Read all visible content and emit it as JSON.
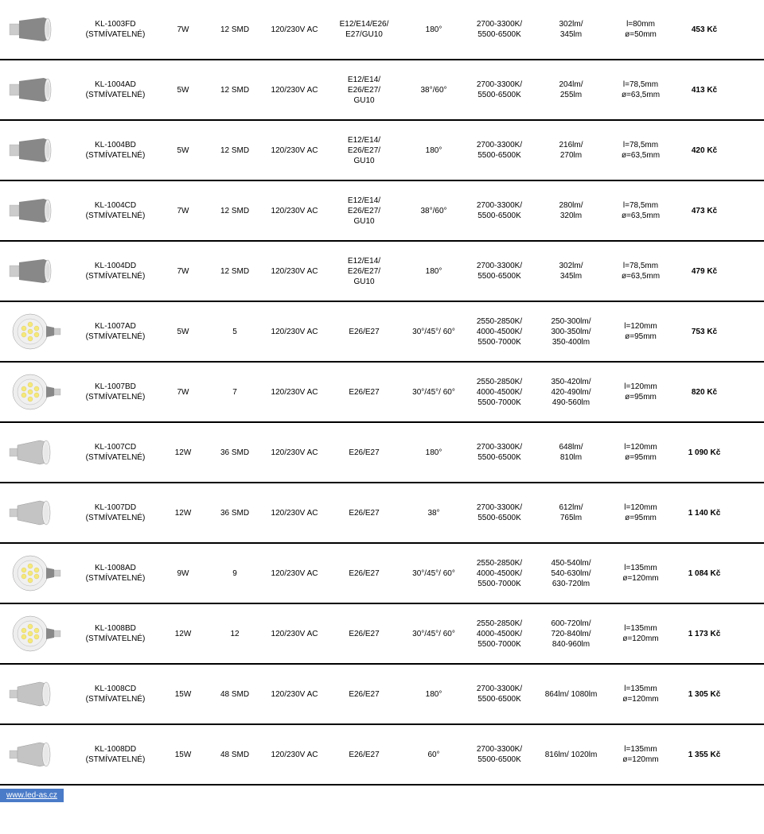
{
  "footer_link": "www.led-as.cz",
  "products": [
    {
      "img_type": "spot-side",
      "name": "KL-1003FD\n(STMÍVATELNÉ)",
      "power": "7W",
      "led": "12 SMD",
      "voltage": "120/230V AC",
      "socket": "E12/E14/E26/\nE27/GU10",
      "angle": "180°",
      "colortemp": "2700-3300K/\n5500-6500K",
      "lumen": "302lm/\n345lm",
      "dims": "l=80mm\nø=50mm",
      "price": "453 Kč"
    },
    {
      "img_type": "spot-side",
      "name": "KL-1004AD\n(STMÍVATELNÉ)",
      "power": "5W",
      "led": "12 SMD",
      "voltage": "120/230V AC",
      "socket": "E12/E14/\nE26/E27/\nGU10",
      "angle": "38°/60°",
      "colortemp": "2700-3300K/\n5500-6500K",
      "lumen": "204lm/\n255lm",
      "dims": "l=78,5mm\nø=63,5mm",
      "price": "413 Kč"
    },
    {
      "img_type": "spot-side",
      "name": "KL-1004BD\n(STMÍVATELNÉ)",
      "power": "5W",
      "led": "12 SMD",
      "voltage": "120/230V AC",
      "socket": "E12/E14/\nE26/E27/\nGU10",
      "angle": "180°",
      "colortemp": "2700-3300K/\n5500-6500K",
      "lumen": "216lm/\n270lm",
      "dims": "l=78,5mm\nø=63,5mm",
      "price": "420 Kč"
    },
    {
      "img_type": "spot-side",
      "name": "KL-1004CD\n(STMÍVATELNÉ)",
      "power": "7W",
      "led": "12 SMD",
      "voltage": "120/230V AC",
      "socket": "E12/E14/\nE26/E27/\nGU10",
      "angle": "38°/60°",
      "colortemp": "2700-3300K/\n5500-6500K",
      "lumen": "280lm/\n320lm",
      "dims": "l=78,5mm\nø=63,5mm",
      "price": "473 Kč"
    },
    {
      "img_type": "spot-side",
      "name": "KL-1004DD\n(STMÍVATELNÉ)",
      "power": "7W",
      "led": "12 SMD",
      "voltage": "120/230V AC",
      "socket": "E12/E14/\nE26/E27/\nGU10",
      "angle": "180°",
      "colortemp": "2700-3300K/\n5500-6500K",
      "lumen": "302lm/\n345lm",
      "dims": "l=78,5mm\nø=63,5mm",
      "price": "479 Kč"
    },
    {
      "img_type": "par-front",
      "name": "KL-1007AD\n(STMÍVATELNÉ)",
      "power": "5W",
      "led": "5",
      "voltage": "120/230V AC",
      "socket": "E26/E27",
      "angle": "30°/45°/ 60°",
      "colortemp": "2550-2850K/\n4000-4500K/\n5500-7000K",
      "lumen": "250-300lm/\n300-350lm/\n350-400lm",
      "dims": "l=120mm\nø=95mm",
      "price": "753 Kč"
    },
    {
      "img_type": "par-front",
      "name": "KL-1007BD\n(STMÍVATELNÉ)",
      "power": "7W",
      "led": "7",
      "voltage": "120/230V AC",
      "socket": "E26/E27",
      "angle": "30°/45°/ 60°",
      "colortemp": "2550-2850K/\n4000-4500K/\n5500-7000K",
      "lumen": "350-420lm/\n420-490lm/\n490-560lm",
      "dims": "l=120mm\nø=95mm",
      "price": "820 Kč"
    },
    {
      "img_type": "par-side",
      "name": "KL-1007CD\n(STMÍVATELNÉ)",
      "power": "12W",
      "led": "36 SMD",
      "voltage": "120/230V AC",
      "socket": "E26/E27",
      "angle": "180°",
      "colortemp": "2700-3300K/\n5500-6500K",
      "lumen": "648lm/\n810lm",
      "dims": "l=120mm\nø=95mm",
      "price": "1 090 Kč"
    },
    {
      "img_type": "par-side",
      "name": "KL-1007DD\n(STMÍVATELNÉ)",
      "power": "12W",
      "led": "36 SMD",
      "voltage": "120/230V AC",
      "socket": "E26/E27",
      "angle": "38°",
      "colortemp": "2700-3300K/\n5500-6500K",
      "lumen": "612lm/\n765lm",
      "dims": "l=120mm\nø=95mm",
      "price": "1 140 Kč"
    },
    {
      "img_type": "par-front",
      "name": "KL-1008AD\n(STMÍVATELNÉ)",
      "power": "9W",
      "led": "9",
      "voltage": "120/230V AC",
      "socket": "E26/E27",
      "angle": "30°/45°/ 60°",
      "colortemp": "2550-2850K/\n4000-4500K/\n5500-7000K",
      "lumen": "450-540lm/\n540-630lm/\n630-720lm",
      "dims": "l=135mm\nø=120mm",
      "price": "1 084 Kč"
    },
    {
      "img_type": "par-front",
      "name": "KL-1008BD\n(STMÍVATELNÉ)",
      "power": "12W",
      "led": "12",
      "voltage": "120/230V AC",
      "socket": "E26/E27",
      "angle": "30°/45°/ 60°",
      "colortemp": "2550-2850K/\n4000-4500K/\n5500-7000K",
      "lumen": "600-720lm/\n720-840lm/\n840-960lm",
      "dims": "l=135mm\nø=120mm",
      "price": "1 173 Kč"
    },
    {
      "img_type": "par-side",
      "name": "KL-1008CD\n(STMÍVATELNÉ)",
      "power": "15W",
      "led": "48 SMD",
      "voltage": "120/230V AC",
      "socket": "E26/E27",
      "angle": "180°",
      "colortemp": "2700-3300K/\n5500-6500K",
      "lumen": "864lm/ 1080lm",
      "dims": "l=135mm\nø=120mm",
      "price": "1 305 Kč"
    },
    {
      "img_type": "par-side",
      "name": "KL-1008DD\n(STMÍVATELNÉ)",
      "power": "15W",
      "led": "48 SMD",
      "voltage": "120/230V AC",
      "socket": "E26/E27",
      "angle": "60°",
      "colortemp": "2700-3300K/\n5500-6500K",
      "lumen": "816lm/ 1020lm",
      "dims": "l=135mm\nø=120mm",
      "price": "1 355 Kč"
    }
  ],
  "svg_defs": {
    "spot-side": "<svg viewBox='0 0 70 50' class='product-img'><rect x='2' y='18' width='12' height='14' class='bulb-base'/><path d='M14 14 L45 10 L50 12 L50 38 L45 40 L14 36 Z' class='bulb-body-dark'/><ellipse cx='50' cy='25' rx='4' ry='14' class='bulb-face'/><ellipse cx='50' cy='25' rx='2.5' ry='10' fill='#ddd'/></svg>",
    "par-front": "<svg viewBox='0 0 70 50' class='product-img'><ellipse cx='28' cy='25' rx='22' ry='22' class='bulb-face'/><circle cx='28' cy='25' r='16' fill='#f0f0f0' stroke='#bbb' stroke-width='0.5'/><circle cx='28' cy='16' r='3' class='bulb-led-yellow'/><circle cx='36' cy='21' r='3' class='bulb-led-yellow'/><circle cx='36' cy='29' r='3' class='bulb-led-yellow'/><circle cx='28' cy='34' r='3' class='bulb-led-yellow'/><circle cx='20' cy='29' r='3' class='bulb-led-yellow'/><circle cx='20' cy='21' r='3' class='bulb-led-yellow'/><circle cx='28' cy='25' r='3' class='bulb-led-yellow'/><path d='M48 18 L58 20 L58 30 L48 32 Z' class='bulb-body-dark'/><rect x='58' y='21' width='8' height='8' class='bulb-base'/></svg>",
    "par-side": "<svg viewBox='0 0 70 50' class='product-img'><rect x='2' y='20' width='10' height='10' class='bulb-base'/><path d='M12 16 L40 10 L48 12 L48 38 L40 40 L12 34 Z' fill='#c4c4c4' stroke='#999' stroke-width='0.5'/><ellipse cx='48' cy='25' rx='5' ry='15' class='bulb-face'/><ellipse cx='48' cy='25' rx='3' ry='11' fill='#e8e8e8'/></svg>"
  }
}
